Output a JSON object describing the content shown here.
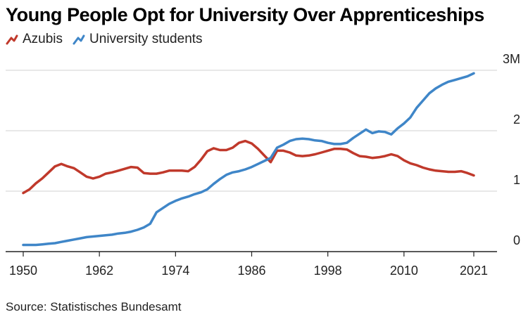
{
  "title": "Young People Opt for University Over Apprenticeships",
  "source": "Source: Statistisches Bundesamt",
  "colors": {
    "azubis": "#c0392b",
    "university": "#3f86c8",
    "grid": "#d0d0d0",
    "axis": "#222222"
  },
  "chart_data": {
    "type": "line",
    "title": "Young People Opt for University Over Apprenticeships",
    "xlabel": "",
    "ylabel": "",
    "xlim": [
      1950,
      2021
    ],
    "ylim": [
      0,
      3
    ],
    "x_ticks": [
      "1950",
      "1962",
      "1974",
      "1986",
      "1998",
      "2010",
      "2021"
    ],
    "y_ticks": [
      "0",
      "1",
      "2",
      "3M"
    ],
    "grid": "horizontal",
    "legend": "top-left",
    "series": [
      {
        "name": "Azubis",
        "x": [
          1950,
          1951,
          1952,
          1953,
          1954,
          1955,
          1956,
          1957,
          1958,
          1959,
          1960,
          1961,
          1962,
          1963,
          1964,
          1965,
          1966,
          1967,
          1968,
          1969,
          1970,
          1971,
          1972,
          1973,
          1974,
          1975,
          1976,
          1977,
          1978,
          1979,
          1980,
          1981,
          1982,
          1983,
          1984,
          1985,
          1986,
          1987,
          1988,
          1989,
          1990,
          1991,
          1992,
          1993,
          1994,
          1995,
          1996,
          1997,
          1998,
          1999,
          2000,
          2001,
          2002,
          2003,
          2004,
          2005,
          2006,
          2007,
          2008,
          2009,
          2010,
          2011,
          2012,
          2013,
          2014,
          2015,
          2016,
          2017,
          2018,
          2019,
          2020,
          2021
        ],
        "values": [
          0.97,
          1.03,
          1.13,
          1.21,
          1.31,
          1.41,
          1.45,
          1.41,
          1.38,
          1.31,
          1.24,
          1.21,
          1.24,
          1.29,
          1.31,
          1.34,
          1.37,
          1.4,
          1.39,
          1.3,
          1.29,
          1.29,
          1.31,
          1.34,
          1.34,
          1.34,
          1.33,
          1.4,
          1.52,
          1.66,
          1.71,
          1.68,
          1.68,
          1.72,
          1.8,
          1.83,
          1.79,
          1.7,
          1.59,
          1.48,
          1.67,
          1.67,
          1.64,
          1.59,
          1.58,
          1.59,
          1.61,
          1.64,
          1.67,
          1.7,
          1.7,
          1.69,
          1.63,
          1.58,
          1.57,
          1.55,
          1.56,
          1.58,
          1.61,
          1.58,
          1.51,
          1.46,
          1.43,
          1.39,
          1.36,
          1.34,
          1.33,
          1.32,
          1.32,
          1.33,
          1.3,
          1.26
        ]
      },
      {
        "name": "University students",
        "x": [
          1950,
          1951,
          1952,
          1953,
          1954,
          1955,
          1956,
          1957,
          1958,
          1959,
          1960,
          1961,
          1962,
          1963,
          1964,
          1965,
          1966,
          1967,
          1968,
          1969,
          1970,
          1971,
          1972,
          1973,
          1974,
          1975,
          1976,
          1977,
          1978,
          1979,
          1980,
          1981,
          1982,
          1983,
          1984,
          1985,
          1986,
          1987,
          1988,
          1989,
          1990,
          1991,
          1992,
          1993,
          1994,
          1995,
          1996,
          1997,
          1998,
          1999,
          2000,
          2001,
          2002,
          2003,
          2004,
          2005,
          2006,
          2007,
          2008,
          2009,
          2010,
          2011,
          2012,
          2013,
          2014,
          2015,
          2016,
          2017,
          2018,
          2019,
          2020,
          2021
        ],
        "values": [
          0.11,
          0.11,
          0.11,
          0.12,
          0.13,
          0.14,
          0.16,
          0.18,
          0.2,
          0.22,
          0.24,
          0.25,
          0.26,
          0.27,
          0.28,
          0.3,
          0.31,
          0.33,
          0.36,
          0.4,
          0.46,
          0.65,
          0.72,
          0.79,
          0.84,
          0.88,
          0.91,
          0.95,
          0.98,
          1.03,
          1.12,
          1.2,
          1.27,
          1.31,
          1.33,
          1.36,
          1.4,
          1.45,
          1.5,
          1.55,
          1.72,
          1.77,
          1.83,
          1.86,
          1.87,
          1.86,
          1.84,
          1.83,
          1.8,
          1.78,
          1.78,
          1.8,
          1.88,
          1.95,
          2.02,
          1.96,
          1.99,
          1.98,
          1.94,
          2.04,
          2.12,
          2.22,
          2.38,
          2.5,
          2.62,
          2.7,
          2.76,
          2.81,
          2.84,
          2.87,
          2.9,
          2.95
        ]
      }
    ]
  }
}
